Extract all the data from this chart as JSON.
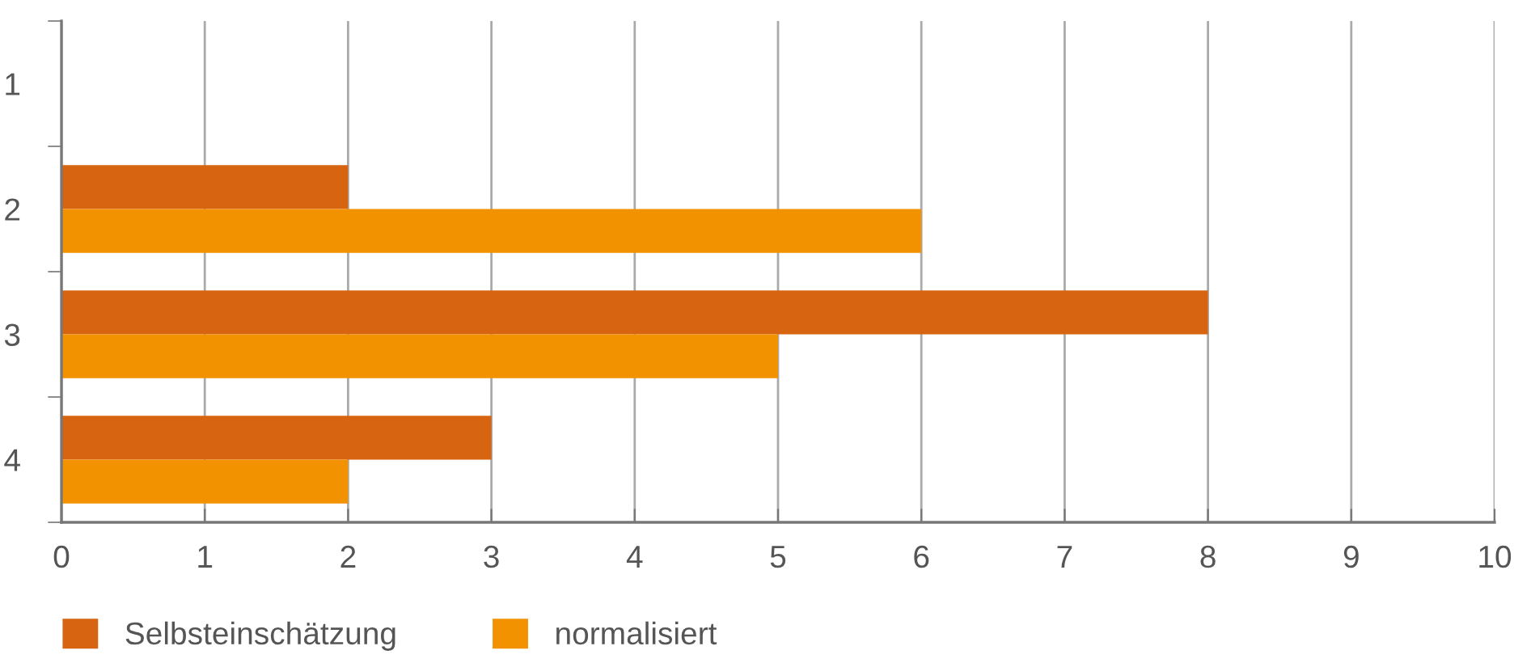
{
  "chart_data": {
    "type": "bar",
    "orientation": "horizontal",
    "categories": [
      "1",
      "2",
      "3",
      "4"
    ],
    "series": [
      {
        "name": "Selbsteinschätzung",
        "color": "#d66411",
        "values": [
          null,
          2,
          8,
          3
        ]
      },
      {
        "name": "normalisiert",
        "color": "#f39200",
        "values": [
          null,
          6,
          5,
          2
        ]
      }
    ],
    "xlim": [
      0,
      10
    ],
    "xticks": [
      0,
      1,
      2,
      3,
      4,
      5,
      6,
      7,
      8,
      9,
      10
    ],
    "grid": "x",
    "legend": "bottom left"
  }
}
